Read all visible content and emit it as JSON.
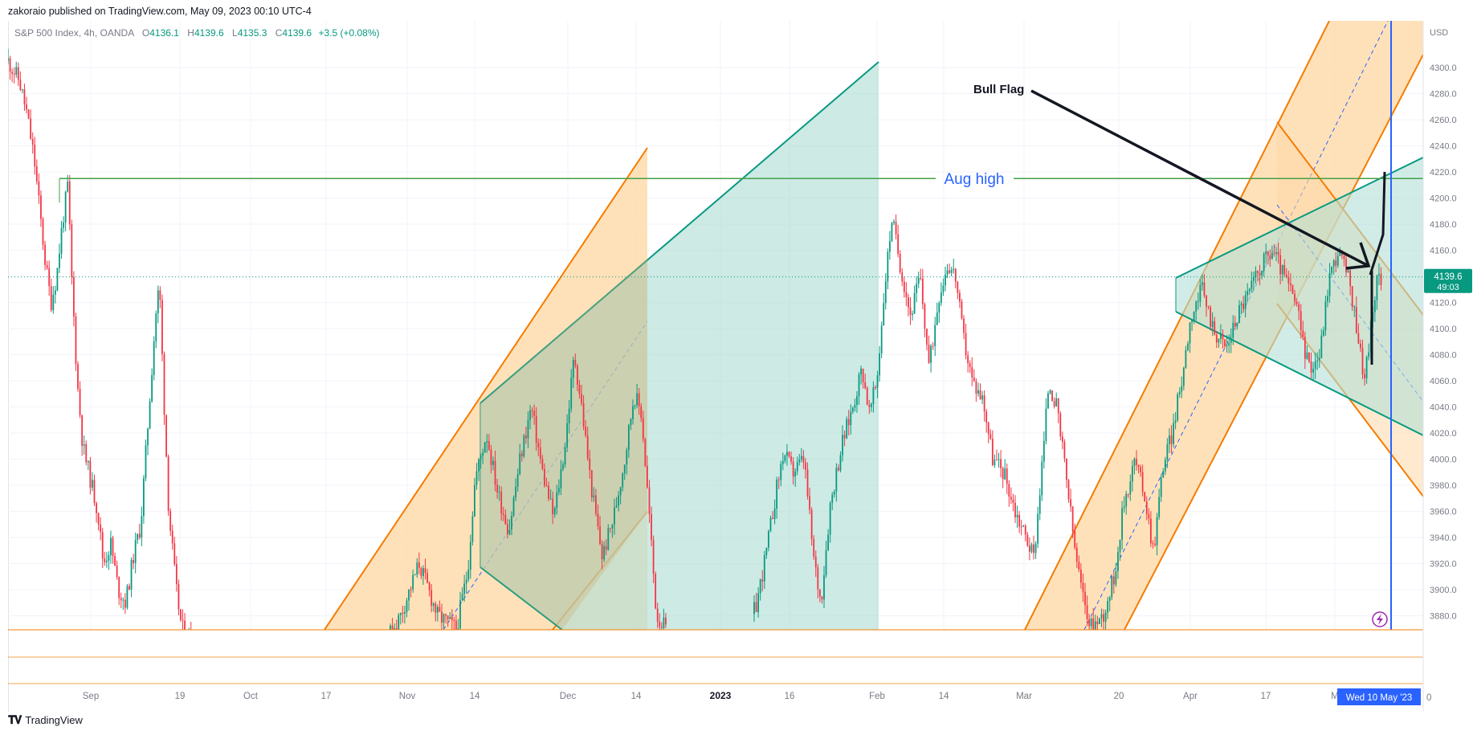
{
  "header": {
    "publisher_line": "zakoraio published on TradingView.com, May 09, 2023 00:10 UTC-4"
  },
  "legend": {
    "symbol": "S&P 500 Index, 4h, OANDA",
    "open_label": "O",
    "open": "4136.1",
    "high_label": "H",
    "high": "4139.6",
    "low_label": "L",
    "low": "4135.3",
    "close_label": "C",
    "close": "4139.6",
    "change": "+3.5 (+0.08%)"
  },
  "footer": {
    "brand": "TradingView"
  },
  "colors": {
    "up": "#089981",
    "down": "#f23645",
    "orange_channel": "#f57c00",
    "orange_fill": "#ffd9a8",
    "teal_channel": "#089981",
    "teal_fill": "#b2dfd6",
    "aug_high": "#43a047",
    "cursor_line": "#2962ff"
  },
  "chart_data": {
    "type": "candlestick",
    "symbol": "S&P 500 Index",
    "timeframe": "4h",
    "y_axis": {
      "unit_label": "USD",
      "ticks": [
        3880,
        3900,
        3920,
        3940,
        3960,
        3980,
        4000,
        4020,
        4040,
        4060,
        4080,
        4100,
        4120,
        4140,
        4160,
        4180,
        4200,
        4220,
        4240,
        4260,
        4280,
        4300
      ],
      "tick_labels": [
        "3880.0",
        "3900.0",
        "3920.0",
        "3940.0",
        "3960.0",
        "3980.0",
        "4000.0",
        "4020.0",
        "4040.0",
        "4060.0",
        "4080.0",
        "4100.0",
        "4120.0",
        "4140.0",
        "4160.0",
        "4180.0",
        "4200.0",
        "4220.0",
        "4240.0",
        "4260.0",
        "4280.0",
        "4300.0"
      ],
      "range": [
        3868,
        4334
      ]
    },
    "x_axis": {
      "ticks": [
        "Sep",
        "19",
        "Oct",
        "17",
        "Nov",
        "14",
        "Dec",
        "14",
        "2023",
        "16",
        "Feb",
        "14",
        "Mar",
        "20",
        "Apr",
        "17",
        "M"
      ],
      "bold_ticks": [
        "2023"
      ]
    },
    "last_price": {
      "value": 4139.6,
      "label": "4139.6",
      "countdown": "49:03"
    },
    "cursor_date": "Wed 10 May '23",
    "cursor_trailing": "0",
    "annotations": {
      "aug_high": {
        "label": "Aug high",
        "price": 4215
      },
      "bull_flag": {
        "label": "Bull Flag"
      }
    },
    "price_path": [
      [
        0,
        4305
      ],
      [
        12,
        4290
      ],
      [
        20,
        4265
      ],
      [
        28,
        4230
      ],
      [
        34,
        4190
      ],
      [
        40,
        4150
      ],
      [
        46,
        4120
      ],
      [
        52,
        4140
      ],
      [
        58,
        4180
      ],
      [
        64,
        4210
      ],
      [
        68,
        4140
      ],
      [
        74,
        4060
      ],
      [
        80,
        4010
      ],
      [
        88,
        3985
      ],
      [
        96,
        3960
      ],
      [
        102,
        3920
      ],
      [
        110,
        3935
      ],
      [
        118,
        3900
      ],
      [
        126,
        3890
      ],
      [
        134,
        3925
      ],
      [
        142,
        3950
      ],
      [
        150,
        4030
      ],
      [
        158,
        4110
      ],
      [
        162,
        4135
      ],
      [
        166,
        4060
      ],
      [
        172,
        3960
      ],
      [
        180,
        3900
      ],
      [
        186,
        3870
      ],
      [
        200,
        3862
      ],
      [
        240,
        3850
      ],
      [
        300,
        3845
      ],
      [
        360,
        3850
      ],
      [
        400,
        3855
      ],
      [
        420,
        3880
      ],
      [
        440,
        3920
      ],
      [
        460,
        3880
      ],
      [
        480,
        3870
      ],
      [
        492,
        3915
      ],
      [
        500,
        3985
      ],
      [
        512,
        4020
      ],
      [
        524,
        3975
      ],
      [
        536,
        3945
      ],
      [
        548,
        4000
      ],
      [
        560,
        4040
      ],
      [
        572,
        3990
      ],
      [
        584,
        3955
      ],
      [
        596,
        4010
      ],
      [
        606,
        4080
      ],
      [
        614,
        4040
      ],
      [
        624,
        3980
      ],
      [
        636,
        3925
      ],
      [
        648,
        3955
      ],
      [
        660,
        4000
      ],
      [
        670,
        4050
      ],
      [
        678,
        4035
      ],
      [
        686,
        3960
      ],
      [
        694,
        3880
      ],
      [
        704,
        3870
      ],
      [
        716,
        3862
      ],
      [
        740,
        3858
      ],
      [
        770,
        3868
      ],
      [
        790,
        3875
      ],
      [
        800,
        3885
      ],
      [
        812,
        3930
      ],
      [
        822,
        3975
      ],
      [
        830,
        4005
      ],
      [
        840,
        3990
      ],
      [
        852,
        4000
      ],
      [
        862,
        3925
      ],
      [
        870,
        3890
      ],
      [
        880,
        3965
      ],
      [
        892,
        4010
      ],
      [
        904,
        4040
      ],
      [
        914,
        4070
      ],
      [
        922,
        4035
      ],
      [
        930,
        4060
      ],
      [
        938,
        4130
      ],
      [
        946,
        4185
      ],
      [
        956,
        4145
      ],
      [
        966,
        4110
      ],
      [
        976,
        4140
      ],
      [
        986,
        4070
      ],
      [
        996,
        4125
      ],
      [
        1006,
        4150
      ],
      [
        1014,
        4140
      ],
      [
        1022,
        4095
      ],
      [
        1032,
        4060
      ],
      [
        1044,
        4045
      ],
      [
        1054,
        4000
      ],
      [
        1066,
        3990
      ],
      [
        1078,
        3960
      ],
      [
        1090,
        3940
      ],
      [
        1098,
        3925
      ],
      [
        1106,
        3990
      ],
      [
        1114,
        4060
      ],
      [
        1122,
        4040
      ],
      [
        1132,
        3990
      ],
      [
        1142,
        3930
      ],
      [
        1150,
        3895
      ],
      [
        1160,
        3870
      ],
      [
        1172,
        3880
      ],
      [
        1184,
        3910
      ],
      [
        1194,
        3965
      ],
      [
        1206,
        4000
      ],
      [
        1216,
        3975
      ],
      [
        1226,
        3930
      ],
      [
        1236,
        3995
      ],
      [
        1246,
        4020
      ],
      [
        1256,
        4060
      ],
      [
        1266,
        4110
      ],
      [
        1278,
        4130
      ],
      [
        1290,
        4100
      ],
      [
        1304,
        4085
      ],
      [
        1318,
        4115
      ],
      [
        1330,
        4130
      ],
      [
        1342,
        4150
      ],
      [
        1354,
        4160
      ],
      [
        1366,
        4140
      ],
      [
        1378,
        4120
      ],
      [
        1392,
        4070
      ],
      [
        1404,
        4080
      ],
      [
        1414,
        4140
      ],
      [
        1424,
        4160
      ],
      [
        1434,
        4140
      ],
      [
        1444,
        4100
      ],
      [
        1452,
        4060
      ],
      [
        1460,
        4110
      ],
      [
        1466,
        4138
      ],
      [
        1470,
        4139.6
      ]
    ]
  }
}
